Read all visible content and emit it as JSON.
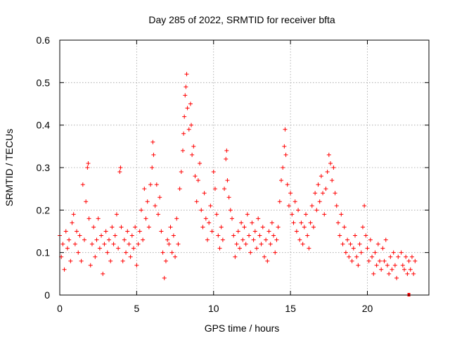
{
  "chart_data": {
    "type": "scatter",
    "title": "Day 285 of 2022, SRMTID for receiver bfta",
    "xlabel": "GPS time / hours",
    "ylabel": "SRMTID / TECUs",
    "xlim": [
      0,
      24
    ],
    "ylim": [
      0,
      0.6
    ],
    "grid": true,
    "marker": "plus",
    "color": "#ff0000",
    "x_ticks": [
      {
        "value": 0,
        "label": "0"
      },
      {
        "value": 5,
        "label": "5"
      },
      {
        "value": 10,
        "label": "10"
      },
      {
        "value": 15,
        "label": "15"
      },
      {
        "value": 20,
        "label": "20"
      }
    ],
    "y_ticks": [
      {
        "value": 0,
        "label": "0"
      },
      {
        "value": 0.1,
        "label": "0.1"
      },
      {
        "value": 0.2,
        "label": "0.2"
      },
      {
        "value": 0.3,
        "label": "0.3"
      },
      {
        "value": 0.4,
        "label": "0.4"
      },
      {
        "value": 0.5,
        "label": "0.5"
      },
      {
        "value": 0.6,
        "label": "0.6"
      }
    ],
    "series": [
      {
        "name": "SRMTID",
        "points": [
          [
            0.0,
            0.14
          ],
          [
            0.1,
            0.09
          ],
          [
            0.2,
            0.12
          ],
          [
            0.3,
            0.06
          ],
          [
            0.4,
            0.15
          ],
          [
            0.5,
            0.11
          ],
          [
            0.6,
            0.13
          ],
          [
            0.7,
            0.08
          ],
          [
            0.8,
            0.17
          ],
          [
            0.9,
            0.19
          ],
          [
            1.0,
            0.12
          ],
          [
            1.1,
            0.15
          ],
          [
            1.2,
            0.1
          ],
          [
            1.3,
            0.14
          ],
          [
            1.4,
            0.08
          ],
          [
            1.5,
            0.26
          ],
          [
            1.6,
            0.13
          ],
          [
            1.7,
            0.22
          ],
          [
            1.8,
            0.3
          ],
          [
            1.85,
            0.31
          ],
          [
            1.9,
            0.18
          ],
          [
            2.0,
            0.07
          ],
          [
            2.1,
            0.12
          ],
          [
            2.2,
            0.16
          ],
          [
            2.3,
            0.09
          ],
          [
            2.4,
            0.13
          ],
          [
            2.5,
            0.18
          ],
          [
            2.6,
            0.11
          ],
          [
            2.7,
            0.14
          ],
          [
            2.8,
            0.05
          ],
          [
            2.9,
            0.12
          ],
          [
            3.0,
            0.15
          ],
          [
            3.1,
            0.1
          ],
          [
            3.2,
            0.13
          ],
          [
            3.3,
            0.08
          ],
          [
            3.4,
            0.16
          ],
          [
            3.5,
            0.12
          ],
          [
            3.6,
            0.14
          ],
          [
            3.7,
            0.19
          ],
          [
            3.8,
            0.11
          ],
          [
            3.9,
            0.29
          ],
          [
            3.95,
            0.3
          ],
          [
            4.0,
            0.16
          ],
          [
            4.1,
            0.08
          ],
          [
            4.2,
            0.13
          ],
          [
            4.3,
            0.1
          ],
          [
            4.4,
            0.15
          ],
          [
            4.5,
            0.12
          ],
          [
            4.6,
            0.09
          ],
          [
            4.7,
            0.14
          ],
          [
            4.8,
            0.11
          ],
          [
            4.9,
            0.16
          ],
          [
            5.0,
            0.07
          ],
          [
            5.1,
            0.12
          ],
          [
            5.2,
            0.15
          ],
          [
            5.3,
            0.2
          ],
          [
            5.4,
            0.13
          ],
          [
            5.5,
            0.25
          ],
          [
            5.6,
            0.18
          ],
          [
            5.7,
            0.22
          ],
          [
            5.8,
            0.16
          ],
          [
            5.9,
            0.26
          ],
          [
            6.0,
            0.3
          ],
          [
            6.05,
            0.36
          ],
          [
            6.1,
            0.33
          ],
          [
            6.2,
            0.21
          ],
          [
            6.3,
            0.26
          ],
          [
            6.4,
            0.19
          ],
          [
            6.5,
            0.23
          ],
          [
            6.6,
            0.15
          ],
          [
            6.7,
            0.1
          ],
          [
            6.8,
            0.04
          ],
          [
            6.9,
            0.08
          ],
          [
            7.0,
            0.13
          ],
          [
            7.1,
            0.12
          ],
          [
            7.2,
            0.16
          ],
          [
            7.3,
            0.1
          ],
          [
            7.4,
            0.14
          ],
          [
            7.5,
            0.09
          ],
          [
            7.6,
            0.18
          ],
          [
            7.7,
            0.12
          ],
          [
            7.8,
            0.25
          ],
          [
            7.9,
            0.29
          ],
          [
            8.0,
            0.34
          ],
          [
            8.05,
            0.38
          ],
          [
            8.1,
            0.42
          ],
          [
            8.15,
            0.47
          ],
          [
            8.2,
            0.49
          ],
          [
            8.25,
            0.52
          ],
          [
            8.3,
            0.44
          ],
          [
            8.4,
            0.39
          ],
          [
            8.5,
            0.45
          ],
          [
            8.55,
            0.4
          ],
          [
            8.6,
            0.33
          ],
          [
            8.7,
            0.35
          ],
          [
            8.8,
            0.28
          ],
          [
            8.9,
            0.22
          ],
          [
            9.0,
            0.27
          ],
          [
            9.1,
            0.31
          ],
          [
            9.2,
            0.2
          ],
          [
            9.3,
            0.16
          ],
          [
            9.4,
            0.24
          ],
          [
            9.5,
            0.18
          ],
          [
            9.6,
            0.13
          ],
          [
            9.7,
            0.17
          ],
          [
            9.8,
            0.21
          ],
          [
            9.9,
            0.15
          ],
          [
            10.0,
            0.29
          ],
          [
            10.1,
            0.25
          ],
          [
            10.2,
            0.19
          ],
          [
            10.3,
            0.14
          ],
          [
            10.4,
            0.11
          ],
          [
            10.5,
            0.16
          ],
          [
            10.6,
            0.13
          ],
          [
            10.7,
            0.25
          ],
          [
            10.8,
            0.32
          ],
          [
            10.85,
            0.34
          ],
          [
            10.9,
            0.27
          ],
          [
            11.0,
            0.23
          ],
          [
            11.1,
            0.2
          ],
          [
            11.2,
            0.18
          ],
          [
            11.3,
            0.14
          ],
          [
            11.4,
            0.09
          ],
          [
            11.5,
            0.12
          ],
          [
            11.6,
            0.15
          ],
          [
            11.7,
            0.11
          ],
          [
            11.8,
            0.17
          ],
          [
            11.9,
            0.13
          ],
          [
            12.0,
            0.16
          ],
          [
            12.1,
            0.12
          ],
          [
            12.2,
            0.19
          ],
          [
            12.3,
            0.14
          ],
          [
            12.4,
            0.1
          ],
          [
            12.5,
            0.17
          ],
          [
            12.6,
            0.13
          ],
          [
            12.7,
            0.15
          ],
          [
            12.8,
            0.11
          ],
          [
            12.9,
            0.18
          ],
          [
            13.0,
            0.14
          ],
          [
            13.1,
            0.12
          ],
          [
            13.2,
            0.16
          ],
          [
            13.3,
            0.09
          ],
          [
            13.4,
            0.13
          ],
          [
            13.5,
            0.08
          ],
          [
            13.6,
            0.15
          ],
          [
            13.7,
            0.12
          ],
          [
            13.8,
            0.17
          ],
          [
            13.9,
            0.14
          ],
          [
            14.0,
            0.1
          ],
          [
            14.1,
            0.13
          ],
          [
            14.2,
            0.16
          ],
          [
            14.3,
            0.22
          ],
          [
            14.4,
            0.27
          ],
          [
            14.5,
            0.3
          ],
          [
            14.6,
            0.35
          ],
          [
            14.65,
            0.39
          ],
          [
            14.7,
            0.33
          ],
          [
            14.8,
            0.26
          ],
          [
            14.9,
            0.21
          ],
          [
            15.0,
            0.24
          ],
          [
            15.1,
            0.19
          ],
          [
            15.2,
            0.17
          ],
          [
            15.3,
            0.22
          ],
          [
            15.4,
            0.15
          ],
          [
            15.5,
            0.2
          ],
          [
            15.6,
            0.13
          ],
          [
            15.7,
            0.17
          ],
          [
            15.8,
            0.12
          ],
          [
            15.9,
            0.16
          ],
          [
            16.0,
            0.19
          ],
          [
            16.1,
            0.14
          ],
          [
            16.2,
            0.11
          ],
          [
            16.3,
            0.17
          ],
          [
            16.4,
            0.21
          ],
          [
            16.5,
            0.16
          ],
          [
            16.6,
            0.24
          ],
          [
            16.7,
            0.2
          ],
          [
            16.8,
            0.26
          ],
          [
            16.9,
            0.22
          ],
          [
            17.0,
            0.28
          ],
          [
            17.1,
            0.24
          ],
          [
            17.2,
            0.19
          ],
          [
            17.3,
            0.25
          ],
          [
            17.4,
            0.29
          ],
          [
            17.5,
            0.33
          ],
          [
            17.6,
            0.31
          ],
          [
            17.7,
            0.27
          ],
          [
            17.8,
            0.3
          ],
          [
            17.9,
            0.24
          ],
          [
            18.0,
            0.21
          ],
          [
            18.1,
            0.17
          ],
          [
            18.2,
            0.14
          ],
          [
            18.3,
            0.19
          ],
          [
            18.4,
            0.12
          ],
          [
            18.5,
            0.16
          ],
          [
            18.6,
            0.1
          ],
          [
            18.7,
            0.13
          ],
          [
            18.8,
            0.09
          ],
          [
            18.9,
            0.12
          ],
          [
            19.0,
            0.08
          ],
          [
            19.1,
            0.11
          ],
          [
            19.2,
            0.14
          ],
          [
            19.3,
            0.09
          ],
          [
            19.4,
            0.07
          ],
          [
            19.5,
            0.12
          ],
          [
            19.6,
            0.1
          ],
          [
            19.7,
            0.16
          ],
          [
            19.8,
            0.21
          ],
          [
            19.9,
            0.14
          ],
          [
            20.0,
            0.11
          ],
          [
            20.1,
            0.08
          ],
          [
            20.2,
            0.13
          ],
          [
            20.3,
            0.09
          ],
          [
            20.4,
            0.05
          ],
          [
            20.5,
            0.1
          ],
          [
            20.6,
            0.07
          ],
          [
            20.7,
            0.12
          ],
          [
            20.8,
            0.08
          ],
          [
            20.9,
            0.06
          ],
          [
            21.0,
            0.11
          ],
          [
            21.1,
            0.08
          ],
          [
            21.2,
            0.13
          ],
          [
            21.3,
            0.07
          ],
          [
            21.4,
            0.05
          ],
          [
            21.5,
            0.09
          ],
          [
            21.6,
            0.06
          ],
          [
            21.7,
            0.1
          ],
          [
            21.8,
            0.07
          ],
          [
            21.9,
            0.04
          ],
          [
            22.0,
            0.09
          ],
          [
            22.2,
            0.1
          ],
          [
            22.3,
            0.07
          ],
          [
            22.4,
            0.06
          ],
          [
            22.5,
            0.09
          ],
          [
            22.6,
            0.05
          ],
          [
            22.7,
            0.08
          ],
          [
            22.8,
            0.06
          ],
          [
            22.9,
            0.09
          ],
          [
            23.0,
            0.05
          ],
          [
            23.1,
            0.08
          ]
        ]
      }
    ],
    "outlier_marker": {
      "x": 22.7,
      "y": 0.0
    }
  }
}
